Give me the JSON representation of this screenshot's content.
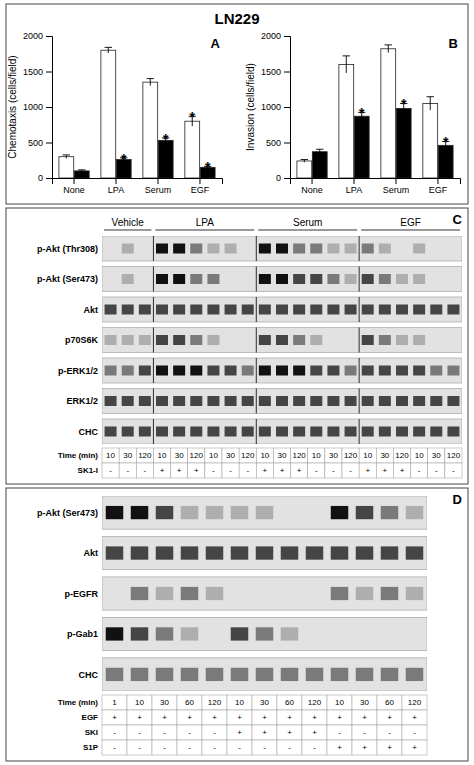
{
  "chart_data": [
    {
      "type": "bar",
      "title": "LN229",
      "annotations": [
        {
          "text": "A"
        }
      ],
      "ylabel": "Chemotaxis (cells/field)",
      "categories": [
        "None",
        "LPA",
        "Serum",
        "EGF"
      ],
      "series": [
        {
          "color": "white",
          "values": [
            300,
            1800,
            1350,
            800
          ],
          "errors": [
            25,
            40,
            50,
            70
          ],
          "annotations": [
            null,
            null,
            null,
            "*"
          ]
        },
        {
          "color": "black",
          "values": [
            100,
            260,
            530,
            150
          ],
          "errors": [
            15,
            25,
            35,
            15
          ],
          "annotations": [
            null,
            "*",
            "*",
            "*"
          ]
        }
      ],
      "ylim": [
        0,
        2000
      ],
      "yticks": [
        0,
        500,
        1000,
        1500,
        2000
      ]
    },
    {
      "type": "bar",
      "annotations": [
        {
          "text": "B"
        }
      ],
      "ylabel": "Invasion (cells/field)",
      "categories": [
        "None",
        "LPA",
        "Serum",
        "EGF"
      ],
      "series": [
        {
          "color": "white",
          "values": [
            240,
            1600,
            1820,
            1050
          ],
          "errors": [
            20,
            120,
            55,
            95
          ]
        },
        {
          "color": "black",
          "values": [
            370,
            870,
            980,
            460
          ],
          "errors": [
            35,
            55,
            70,
            55
          ],
          "annotations": [
            null,
            "*",
            "*",
            "*"
          ]
        }
      ],
      "ylim": [
        0,
        2000
      ],
      "yticks": [
        0,
        500,
        1000,
        1500,
        2000
      ]
    },
    {
      "type": "heatmap",
      "annotations": [
        {
          "text": "C"
        }
      ],
      "rows": [
        "p-Akt (Thr308)",
        "p-Akt (Ser473)",
        "Akt",
        "p70S6K",
        "p-ERK1/2",
        "ERK1/2",
        "CHC"
      ],
      "groups": [
        {
          "name": "Vehicle",
          "lanes": 3
        },
        {
          "name": "LPA",
          "lanes": 6
        },
        {
          "name": "Serum",
          "lanes": 6
        },
        {
          "name": "EGF",
          "lanes": 6
        }
      ],
      "cells": [
        [
          0,
          1,
          0,
          4,
          4,
          2,
          1,
          1,
          0,
          4,
          4,
          2,
          2,
          1,
          1,
          2,
          1,
          0,
          1,
          0,
          0
        ],
        [
          0,
          1,
          0,
          4,
          4,
          2,
          2,
          0,
          0,
          4,
          4,
          3,
          3,
          2,
          1,
          3,
          2,
          1,
          1,
          0,
          0
        ],
        [
          3,
          3,
          3,
          3,
          3,
          3,
          3,
          3,
          3,
          3,
          3,
          3,
          3,
          3,
          3,
          3,
          3,
          3,
          3,
          3,
          3
        ],
        [
          1,
          1,
          1,
          3,
          3,
          2,
          1,
          0,
          0,
          3,
          3,
          2,
          1,
          0,
          0,
          3,
          2,
          1,
          1,
          0,
          0
        ],
        [
          2,
          2,
          3,
          4,
          4,
          4,
          3,
          3,
          2,
          4,
          4,
          4,
          3,
          3,
          2,
          3,
          3,
          3,
          3,
          2,
          2
        ],
        [
          3,
          3,
          3,
          3,
          3,
          3,
          3,
          3,
          3,
          3,
          3,
          3,
          3,
          3,
          3,
          3,
          3,
          3,
          3,
          3,
          3
        ],
        [
          3,
          3,
          3,
          3,
          3,
          3,
          3,
          3,
          3,
          3,
          3,
          3,
          3,
          3,
          3,
          3,
          3,
          3,
          3,
          3,
          3
        ]
      ],
      "zlim": [
        0,
        4
      ],
      "column_labels": [
        {
          "name": "Time (min)",
          "labels": [
            "10",
            "30",
            "120",
            "10",
            "30",
            "120",
            "10",
            "30",
            "120",
            "10",
            "30",
            "120",
            "10",
            "30",
            "120",
            "10",
            "30",
            "120",
            "10",
            "30",
            "120"
          ]
        },
        {
          "name": "SK1-I",
          "labels": [
            "-",
            "-",
            "-",
            "+",
            "+",
            "+",
            "-",
            "-",
            "-",
            "+",
            "+",
            "+",
            "-",
            "-",
            "-",
            "+",
            "+",
            "+",
            "-",
            "-",
            "-"
          ]
        }
      ]
    },
    {
      "type": "heatmap",
      "annotations": [
        {
          "text": "D"
        }
      ],
      "rows": [
        "p-Akt (Ser473)",
        "Akt",
        "p-EGFR",
        "p-Gab1",
        "CHC"
      ],
      "cells": [
        [
          4,
          4,
          3,
          1,
          1,
          1,
          1,
          0,
          0,
          4,
          3,
          2,
          1
        ],
        [
          3,
          3,
          3,
          3,
          3,
          3,
          3,
          3,
          3,
          3,
          3,
          3,
          3
        ],
        [
          0,
          2,
          1,
          2,
          1,
          0,
          0,
          0,
          0,
          2,
          1,
          2,
          1
        ],
        [
          4,
          3,
          2,
          1,
          0,
          3,
          2,
          1,
          0,
          0,
          0,
          0,
          0
        ],
        [
          2,
          2,
          2,
          2,
          2,
          2,
          2,
          2,
          2,
          2,
          2,
          2,
          2
        ]
      ],
      "zlim": [
        0,
        4
      ],
      "column_labels": [
        {
          "name": "Time (min)",
          "labels": [
            "1",
            "10",
            "30",
            "60",
            "120",
            "10",
            "30",
            "60",
            "120",
            "10",
            "30",
            "60",
            "120"
          ]
        },
        {
          "name": "EGF",
          "labels": [
            "+",
            "+",
            "+",
            "+",
            "+",
            "+",
            "+",
            "+",
            "+",
            "+",
            "+",
            "+",
            "+"
          ]
        },
        {
          "name": "SKI",
          "labels": [
            "-",
            "-",
            "-",
            "-",
            "-",
            "+",
            "+",
            "+",
            "+",
            "-",
            "-",
            "-",
            "-"
          ]
        },
        {
          "name": "S1P",
          "labels": [
            "-",
            "-",
            "-",
            "-",
            "-",
            "-",
            "-",
            "-",
            "-",
            "+",
            "+",
            "+",
            "+"
          ]
        }
      ]
    }
  ]
}
